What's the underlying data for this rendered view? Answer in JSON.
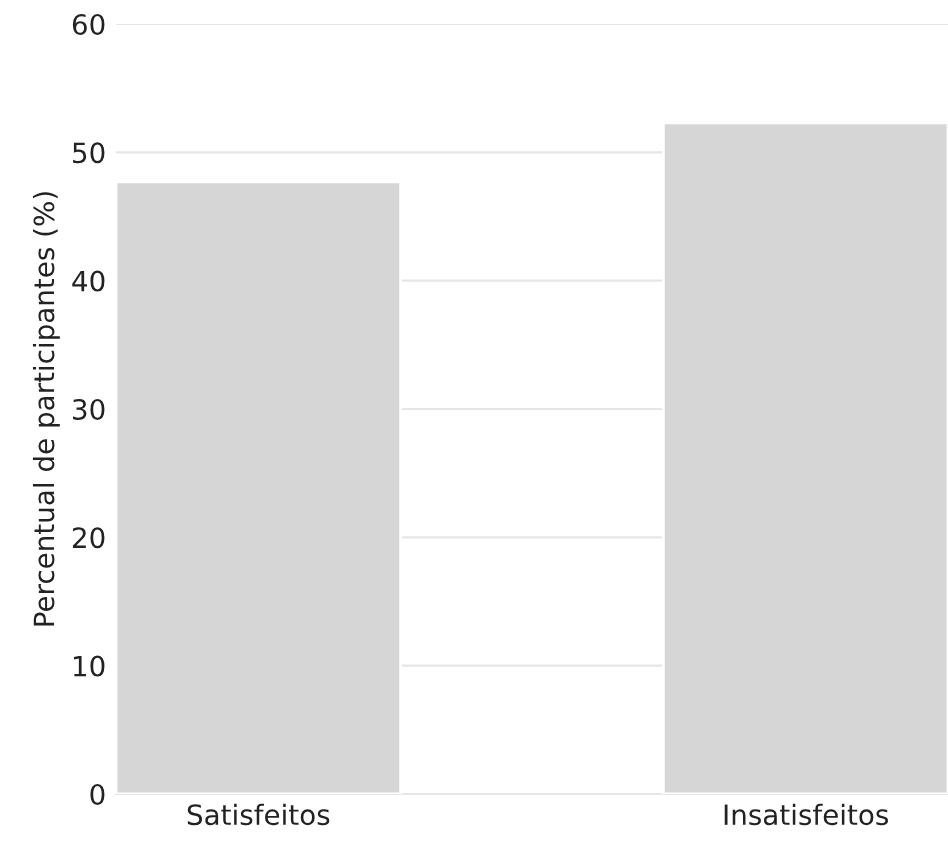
{
  "chart_data": {
    "type": "bar",
    "ylabel": "Percentual de participantes (%)",
    "categories": [
      "Satisfeitos",
      "Insatisfeitos"
    ],
    "values": [
      47.7,
      52.3
    ],
    "color": "#d6d6d6",
    "ylim": [
      0,
      60
    ],
    "yticks": [
      0,
      10,
      20,
      30,
      40,
      50,
      60
    ],
    "grid": "y",
    "legend": false
  }
}
